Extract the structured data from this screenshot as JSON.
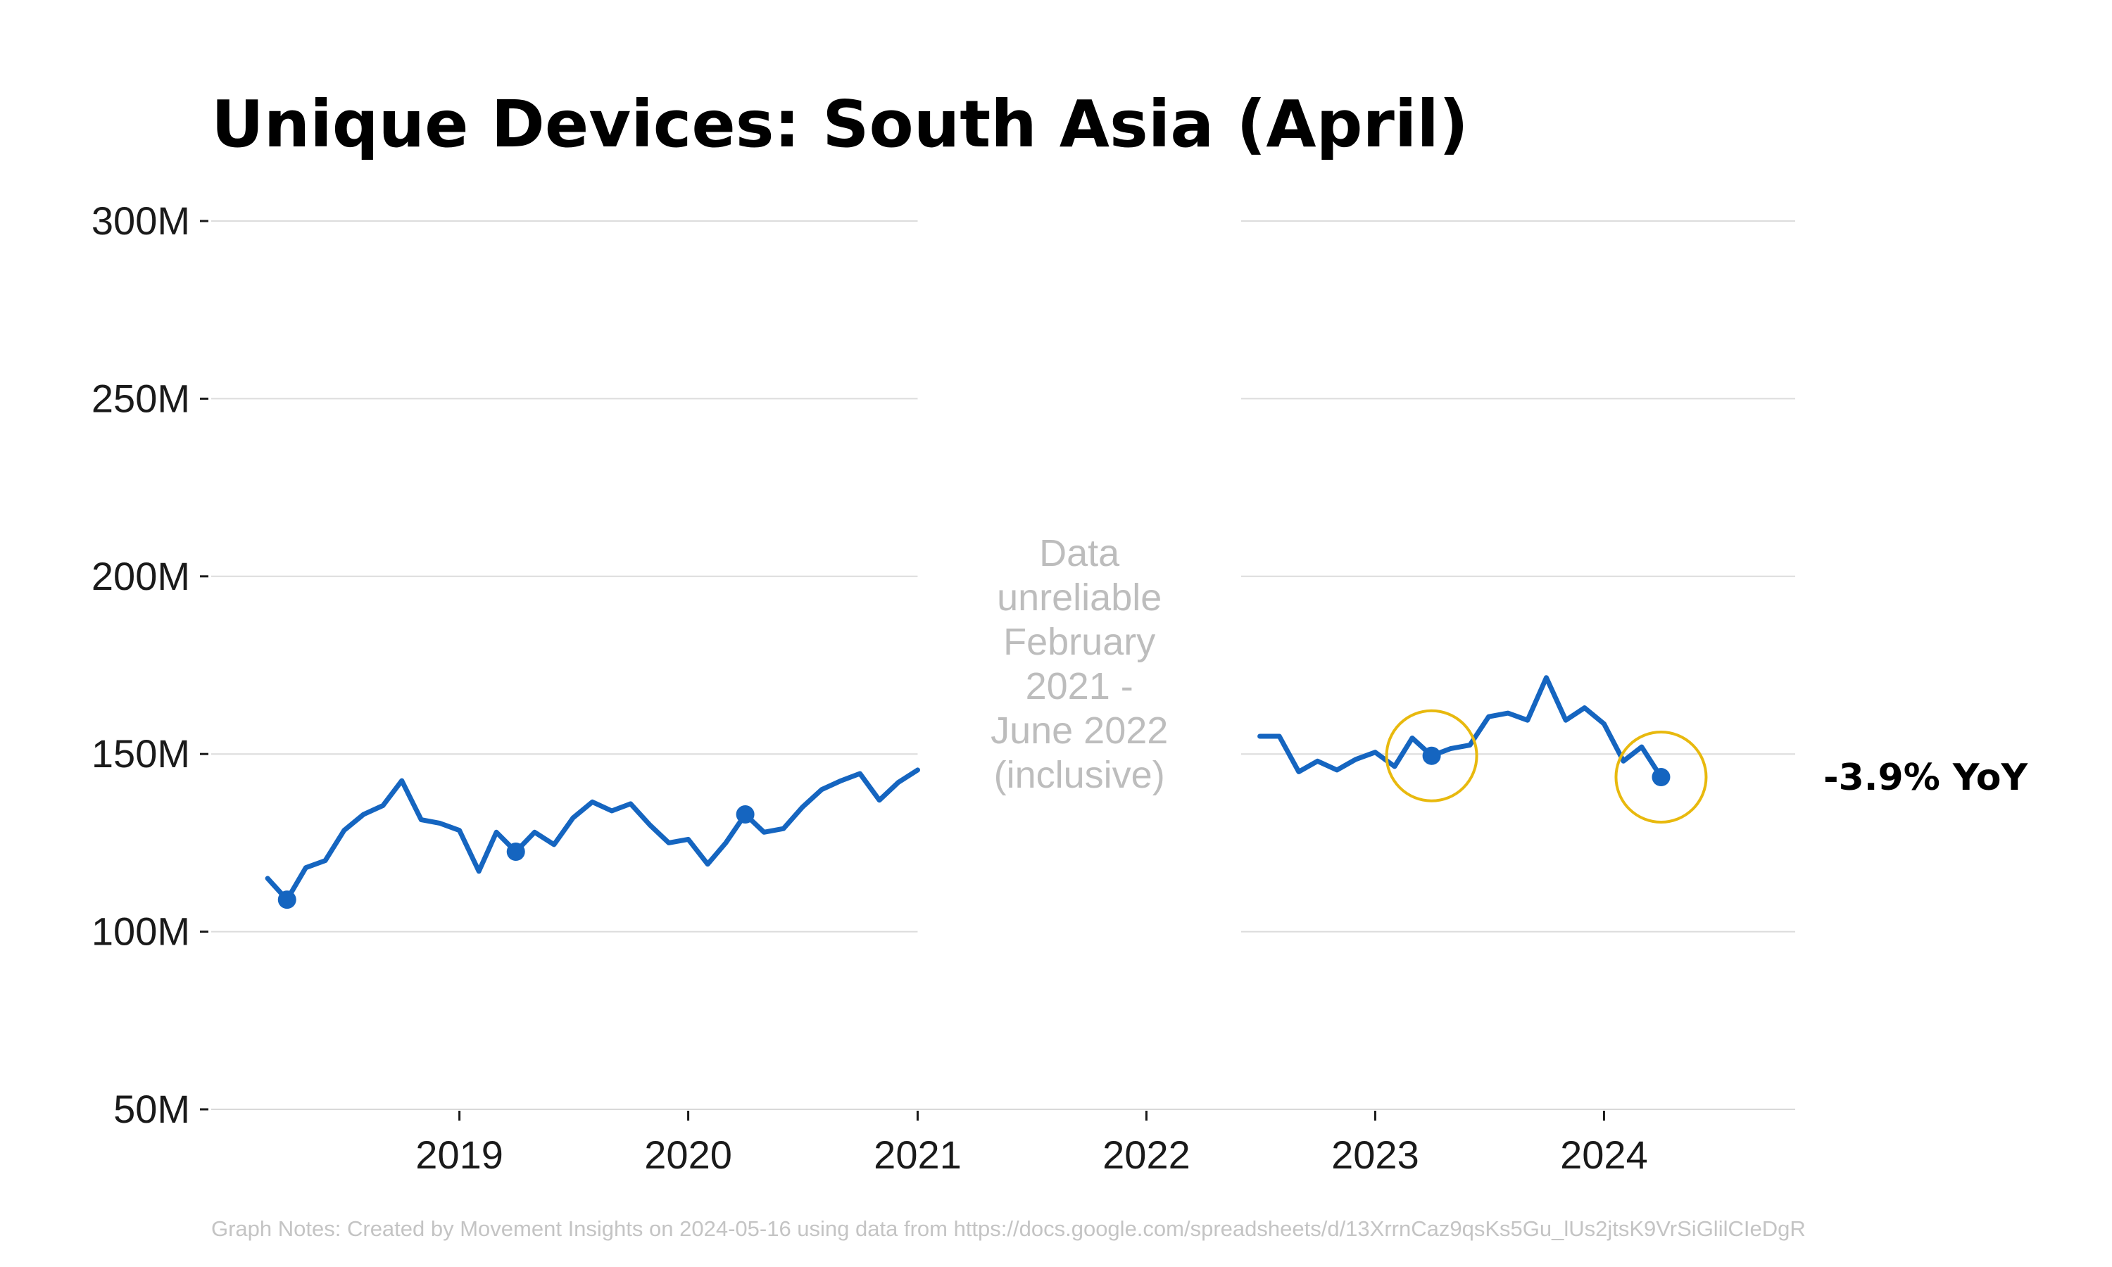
{
  "chart_data": {
    "type": "line",
    "title": "Unique Devices: South Asia (April)",
    "xlabel": "",
    "ylabel": "",
    "ylim": [
      50000000,
      300000000
    ],
    "yticks": [
      {
        "value": 50000000,
        "label": "50M"
      },
      {
        "value": 100000000,
        "label": "100M"
      },
      {
        "value": 150000000,
        "label": "150M"
      },
      {
        "value": 200000000,
        "label": "200M"
      },
      {
        "value": 250000000,
        "label": "250M"
      },
      {
        "value": 300000000,
        "label": "300M"
      }
    ],
    "xticks": [
      {
        "value": "2019-01-01",
        "label": "2019"
      },
      {
        "value": "2020-01-01",
        "label": "2020"
      },
      {
        "value": "2021-01-01",
        "label": "2021"
      },
      {
        "value": "2022-01-01",
        "label": "2022"
      },
      {
        "value": "2023-01-01",
        "label": "2023"
      },
      {
        "value": "2024-01-01",
        "label": "2024"
      }
    ],
    "xlim": [
      "2017-12-01",
      "2024-11-01"
    ],
    "grid": true,
    "gap_note": [
      "Data",
      "unreliable",
      "February",
      "2021 -",
      "June 2022",
      "(inclusive)"
    ],
    "gap_range": [
      "2021-01-01",
      "2022-06-01"
    ],
    "series": [
      {
        "color": "#1565c0",
        "points": [
          [
            "2018-03-01",
            115000000
          ],
          [
            "2018-04-01",
            109000000
          ],
          [
            "2018-05-01",
            118000000
          ],
          [
            "2018-06-01",
            120000000
          ],
          [
            "2018-07-01",
            128500000
          ],
          [
            "2018-08-01",
            133000000
          ],
          [
            "2018-09-01",
            135500000
          ],
          [
            "2018-10-01",
            142500000
          ],
          [
            "2018-11-01",
            131500000
          ],
          [
            "2018-12-01",
            130500000
          ],
          [
            "2019-01-01",
            128500000
          ],
          [
            "2019-02-01",
            117000000
          ],
          [
            "2019-03-01",
            128000000
          ],
          [
            "2019-04-01",
            122500000
          ],
          [
            "2019-05-01",
            128000000
          ],
          [
            "2019-06-01",
            124500000
          ],
          [
            "2019-07-01",
            132000000
          ],
          [
            "2019-08-01",
            136500000
          ],
          [
            "2019-09-01",
            134000000
          ],
          [
            "2019-10-01",
            136000000
          ],
          [
            "2019-11-01",
            130000000
          ],
          [
            "2019-12-01",
            125000000
          ],
          [
            "2020-01-01",
            126000000
          ],
          [
            "2020-02-01",
            119000000
          ],
          [
            "2020-03-01",
            125000000
          ],
          [
            "2020-04-01",
            133000000
          ],
          [
            "2020-05-01",
            128000000
          ],
          [
            "2020-06-01",
            129000000
          ],
          [
            "2020-07-01",
            135000000
          ],
          [
            "2020-08-01",
            140000000
          ],
          [
            "2020-09-01",
            142500000
          ],
          [
            "2020-10-01",
            144500000
          ],
          [
            "2020-11-01",
            137000000
          ],
          [
            "2020-12-01",
            142000000
          ],
          [
            "2021-01-01",
            145500000
          ]
        ]
      },
      {
        "color": "#1565c0",
        "points": [
          [
            "2022-07-01",
            155000000
          ],
          [
            "2022-08-01",
            155000000
          ],
          [
            "2022-09-01",
            145000000
          ],
          [
            "2022-10-01",
            148000000
          ],
          [
            "2022-11-01",
            145500000
          ],
          [
            "2022-12-01",
            148500000
          ],
          [
            "2023-01-01",
            150500000
          ],
          [
            "2023-02-01",
            146500000
          ],
          [
            "2023-03-01",
            154500000
          ],
          [
            "2023-04-01",
            149500000
          ],
          [
            "2023-05-01",
            151500000
          ],
          [
            "2023-06-01",
            152500000
          ],
          [
            "2023-07-01",
            160500000
          ],
          [
            "2023-08-01",
            161500000
          ],
          [
            "2023-09-01",
            159500000
          ],
          [
            "2023-10-01",
            171500000
          ],
          [
            "2023-11-01",
            159500000
          ],
          [
            "2023-12-01",
            163000000
          ],
          [
            "2024-01-01",
            158500000
          ],
          [
            "2024-02-01",
            148000000
          ],
          [
            "2024-03-01",
            152000000
          ],
          [
            "2024-04-01",
            143500000
          ]
        ]
      }
    ],
    "markers": [
      {
        "x": "2018-04-01",
        "y": 109000000,
        "color": "#1565c0"
      },
      {
        "x": "2019-04-01",
        "y": 122500000,
        "color": "#1565c0"
      },
      {
        "x": "2020-04-01",
        "y": 133000000,
        "color": "#1565c0"
      },
      {
        "x": "2023-04-01",
        "y": 149500000,
        "color": "#1565c0"
      },
      {
        "x": "2024-04-01",
        "y": 143500000,
        "color": "#1565c0"
      }
    ],
    "highlights": [
      {
        "x": "2023-04-01",
        "y": 149500000,
        "color": "#e8b90e"
      },
      {
        "x": "2024-04-01",
        "y": 143500000,
        "color": "#e8b90e"
      }
    ],
    "annotation": {
      "text": "-3.9% YoY",
      "x": "2024-04-01",
      "y": 143500000
    },
    "footer": "Graph Notes: Created by Movement Insights  on 2024-05-16 using data from https://docs.google.com/spreadsheets/d/13XrrnCaz9qsKs5Gu_lUs2jtsK9VrSiGlilCIeDgR"
  }
}
